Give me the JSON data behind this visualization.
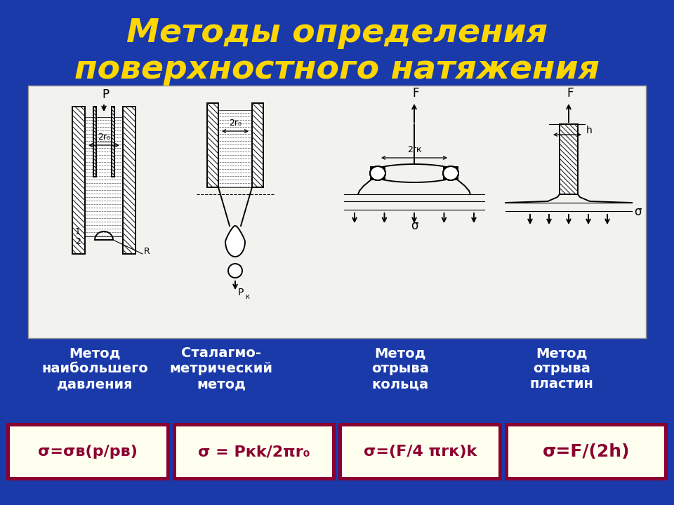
{
  "title_line1": "Методы определения",
  "title_line2": "поверхностного натяжения",
  "title_color": "#FFD700",
  "bg_color": "#1a3aaa",
  "diagram_bg": "#f2f2ee",
  "formula_bg": "#fffff0",
  "formula_border": "#8b0030",
  "formula_text_color": "#8b0030",
  "method_text_color": "#ffffff",
  "method_labels": [
    "Метод\nнаибольшего\nдавления",
    "Сталагмо-\nметрический\nметод",
    "Метод\nотрыва\nкольца",
    "Метод\nотрыва\nпластин"
  ],
  "formulas": [
    "σ=σв(p/pв)",
    "σ = Pкk/2πr₀",
    "σ=(F/4 πrк)k",
    "σ=F/(2h)"
  ],
  "figsize": [
    9.6,
    7.2
  ],
  "dpi": 100
}
